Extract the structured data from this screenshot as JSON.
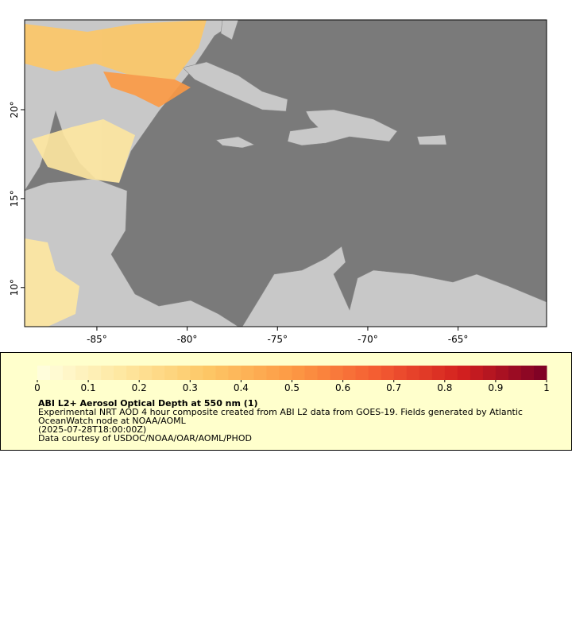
{
  "map": {
    "xlim": [
      -89,
      -60.1
    ],
    "ylim": [
      7.8,
      25.05
    ],
    "xticks": [
      {
        "value": -85,
        "label": "-85°"
      },
      {
        "value": -80,
        "label": "-80°"
      },
      {
        "value": -75,
        "label": "-75°"
      },
      {
        "value": -70,
        "label": "-70°"
      },
      {
        "value": -65,
        "label": "-65°"
      }
    ],
    "yticks": [
      {
        "value": 10,
        "label": "10°"
      },
      {
        "value": 15,
        "label": "15°"
      },
      {
        "value": 20,
        "label": "20°"
      }
    ]
  },
  "colorbar": {
    "lim": [
      0,
      1
    ],
    "ticks": [
      0,
      0.1,
      0.2,
      0.3,
      0.4,
      0.5,
      0.6,
      0.7,
      0.8,
      0.9,
      1
    ],
    "colors": [
      "#ffffe0",
      "#fee7a0",
      "#fdc766",
      "#fd9a44",
      "#f45c32",
      "#d3201f",
      "#7a0026"
    ]
  },
  "legend": {
    "title": "ABI L2+ Aerosol Optical Depth at 550 nm (1)",
    "lines": [
      "Experimental NRT AOD 4 hour composite created from ABI L2 data from GOES-19. Fields generated by Atlantic",
      "OceanWatch node at NOAA/AOML",
      "(2025-07-28T18:00:00Z)",
      "Data courtesy of USDOC/NOAA/OAR/AOML/PHOD"
    ]
  }
}
